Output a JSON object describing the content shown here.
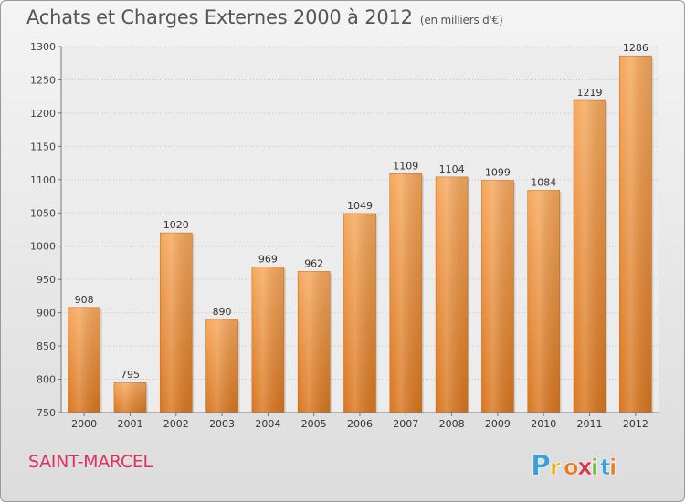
{
  "header": {
    "title": "Achats et Charges Externes 2000 à 2012",
    "subtitle": "(en milliers d'€)"
  },
  "footer": {
    "city": "SAINT-MARCEL",
    "logo_text": "Proxiti",
    "logo_letters": [
      {
        "ch": "P",
        "color": "#3aa0d8"
      },
      {
        "ch": "r",
        "color": "#e2b21c"
      },
      {
        "ch": "o",
        "color": "#ea7a1b"
      },
      {
        "ch": "x",
        "color": "#d63b55"
      },
      {
        "ch": "i",
        "color": "#6fb33a"
      },
      {
        "ch": "t",
        "color": "#3aa0d8"
      },
      {
        "ch": "i",
        "color": "#ea7a1b"
      }
    ]
  },
  "chart_data": {
    "type": "bar",
    "title": "Achats et Charges Externes 2000 à 2012",
    "subtitle": "(en milliers d'€)",
    "categories": [
      "2000",
      "2001",
      "2002",
      "2003",
      "2004",
      "2005",
      "2006",
      "2007",
      "2008",
      "2009",
      "2010",
      "2011",
      "2012"
    ],
    "values": [
      908,
      795,
      1020,
      890,
      969,
      962,
      1049,
      1109,
      1104,
      1099,
      1084,
      1219,
      1286
    ],
    "ylim": [
      750,
      1300
    ],
    "yticks": [
      750,
      800,
      850,
      900,
      950,
      1000,
      1050,
      1100,
      1150,
      1200,
      1250,
      1300
    ],
    "grid": true,
    "bar_color": "#f0923a",
    "bar_color_light": "#f6a85c",
    "bar_color_dark": "#d9761f",
    "xlabel": "",
    "ylabel": ""
  }
}
